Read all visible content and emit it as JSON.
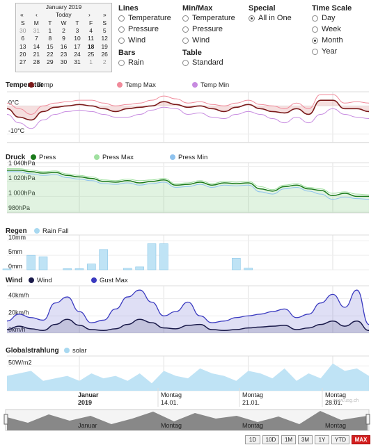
{
  "calendar": {
    "month_label": "January 2019",
    "prev_year": "«",
    "prev_month": "‹",
    "today": "Today",
    "next_month": "›",
    "next_year": "»",
    "weekdays": [
      "S",
      "M",
      "T",
      "W",
      "T",
      "F",
      "S"
    ],
    "weeks": [
      [
        "30",
        "31",
        "1",
        "2",
        "3",
        "4",
        "5"
      ],
      [
        "6",
        "7",
        "8",
        "9",
        "10",
        "11",
        "12"
      ],
      [
        "13",
        "14",
        "15",
        "16",
        "17",
        "18",
        "19"
      ],
      [
        "20",
        "21",
        "22",
        "23",
        "24",
        "25",
        "26"
      ],
      [
        "27",
        "28",
        "29",
        "30",
        "31",
        "1",
        "2"
      ]
    ],
    "selected_day": "18"
  },
  "options": {
    "lines": {
      "title": "Lines",
      "items": [
        "Temperature",
        "Pressure",
        "Wind"
      ]
    },
    "bars": {
      "title": "Bars",
      "items": [
        "Rain"
      ]
    },
    "minmax": {
      "title": "Min/Max",
      "items": [
        "Temperature",
        "Pressure",
        "Wind"
      ]
    },
    "table": {
      "title": "Table",
      "items": [
        "Standard"
      ]
    },
    "special": {
      "title": "Special",
      "items": [
        "All in One"
      ],
      "selected": "All in One"
    },
    "timescale": {
      "title": "Time Scale",
      "items": [
        "Day",
        "Week",
        "Month",
        "Year"
      ],
      "selected": "Month"
    }
  },
  "sections": {
    "temp": {
      "title": "Temperatur",
      "legend": [
        "Temp",
        "Temp Max",
        "Temp Min"
      ],
      "colors": [
        "#7a1a1a",
        "#f08a9a",
        "#c78be0"
      ],
      "yticks": [
        "0°C",
        "-10°C"
      ]
    },
    "press": {
      "title": "Druck",
      "legend": [
        "Press",
        "Press Max",
        "Press Min"
      ],
      "colors": [
        "#1a7a1a",
        "#a0e0a0",
        "#8ec2ee"
      ],
      "yticks": [
        "1 040hPa",
        "1 020hPa",
        "1 000hPa",
        "980hPa"
      ]
    },
    "rain": {
      "title": "Regen",
      "legend": [
        "Rain Fall"
      ],
      "colors": [
        "#a8d8f0"
      ],
      "yticks": [
        "10mm",
        "5mm",
        "0mm"
      ]
    },
    "wind": {
      "title": "Wind",
      "legend": [
        "Wind",
        "Gust Max"
      ],
      "colors": [
        "#1a1a4a",
        "#3a3ac0"
      ],
      "yticks": [
        "40km/h",
        "20km/h",
        "0km/h"
      ]
    },
    "solar": {
      "title": "Globalstrahlung",
      "legend": [
        "solar"
      ],
      "colors": [
        "#a8d8f0"
      ],
      "yticks": [
        "50W/m2",
        "0W/m2"
      ]
    }
  },
  "xaxis": {
    "labels": [
      {
        "line1": "Januar",
        "line2": "2019"
      },
      {
        "line1": "Montag",
        "line2": "14.01."
      },
      {
        "line1": "Montag",
        "line2": "21.01."
      },
      {
        "line1": "Montag",
        "line2": "28.01."
      }
    ]
  },
  "navigator": {
    "labels": [
      "Januar",
      "Montag",
      "Montag",
      "Montag"
    ]
  },
  "watermark": "www.usg.ch",
  "zoom_buttons": [
    "1D",
    "10D",
    "1M",
    "3M",
    "1Y",
    "YTD",
    "MAX"
  ],
  "zoom_selected": "MAX",
  "chart_data": [
    {
      "type": "area",
      "title": "Temperatur",
      "x_unit": "day of January 2019",
      "x": [
        1,
        2,
        3,
        4,
        5,
        6,
        7,
        8,
        9,
        10,
        11,
        12,
        13,
        14,
        15,
        16,
        17,
        18,
        19,
        20,
        21,
        22,
        23,
        24,
        25,
        26,
        27,
        28,
        29,
        30,
        31
      ],
      "series": [
        {
          "name": "Temp",
          "values": [
            -1,
            -4,
            -5,
            -2,
            -0.5,
            0,
            0.5,
            0,
            -1,
            -2,
            -1,
            -0.5,
            0,
            1.5,
            0.5,
            -0.5,
            0,
            -1,
            -2,
            -0.5,
            0.5,
            -1,
            -2,
            -2.5,
            -1,
            -3,
            2,
            2,
            -1,
            -1,
            -2
          ]
        },
        {
          "name": "Temp Max",
          "values": [
            1,
            -1,
            -3,
            0,
            1,
            1.5,
            2,
            2,
            1,
            0,
            0.5,
            1,
            2,
            3.5,
            2.5,
            1,
            1.5,
            0.5,
            0,
            1,
            2,
            0.5,
            0,
            -1,
            1,
            -1,
            4,
            4,
            1,
            1.5,
            1
          ]
        },
        {
          "name": "Temp Min",
          "values": [
            -3,
            -6,
            -8,
            -5,
            -3,
            -2,
            -1.5,
            -2,
            -3,
            -4,
            -4,
            -3,
            -1.5,
            -0.5,
            -1,
            -3,
            -2.5,
            -4,
            -4.5,
            -3,
            -2,
            -3,
            -4.5,
            -6,
            -4,
            -6,
            -3,
            -1,
            -3,
            -4,
            -4.5
          ]
        }
      ],
      "ylim": [
        -13,
        5
      ]
    },
    {
      "type": "area",
      "title": "Druck",
      "x": [
        1,
        2,
        3,
        4,
        5,
        6,
        7,
        8,
        9,
        10,
        11,
        12,
        13,
        14,
        15,
        16,
        17,
        18,
        19,
        20,
        21,
        22,
        23,
        24,
        25,
        26,
        27,
        28,
        29,
        30,
        31
      ],
      "series": [
        {
          "name": "Press",
          "values": [
            1035,
            1035,
            1033,
            1031,
            1032,
            1028,
            1026,
            1024,
            1020,
            1019,
            1021,
            1018,
            1020,
            1022,
            1015,
            1016,
            1019,
            1015,
            1018,
            1017,
            1018,
            1010,
            1007,
            1013,
            1015,
            1010,
            1008,
            1001,
            1004,
            1000,
            1000
          ]
        },
        {
          "name": "Press Max",
          "values": [
            1037,
            1037,
            1035,
            1033,
            1034,
            1030,
            1028,
            1026,
            1022,
            1021,
            1023,
            1021,
            1022,
            1024,
            1017,
            1018,
            1021,
            1017,
            1020,
            1019,
            1020,
            1013,
            1009,
            1015,
            1017,
            1012,
            1010,
            1004,
            1006,
            1003,
            1002
          ]
        },
        {
          "name": "Press Min",
          "values": [
            1033,
            1033,
            1030,
            1028,
            1029,
            1025,
            1023,
            1021,
            1017,
            1016,
            1018,
            1015,
            1017,
            1019,
            1012,
            1013,
            1016,
            1012,
            1015,
            1014,
            1015,
            1006,
            1003,
            1010,
            1012,
            1007,
            1003,
            996,
            999,
            997,
            996
          ]
        }
      ],
      "ylim": [
        978,
        1045
      ]
    },
    {
      "type": "bar",
      "title": "Regen",
      "x": [
        1,
        2,
        3,
        4,
        5,
        6,
        7,
        8,
        9,
        10,
        11,
        12,
        13,
        14,
        15,
        16,
        17,
        18,
        19,
        20,
        21,
        22,
        23,
        24,
        25,
        26,
        27,
        28,
        29,
        30,
        31
      ],
      "series": [
        {
          "name": "Rain Fall",
          "values": [
            0.3,
            0,
            5,
            4.5,
            0,
            0.4,
            0.4,
            2,
            7,
            0,
            0.5,
            1,
            9,
            9,
            0,
            0,
            0,
            0,
            0,
            4,
            0.6,
            0,
            0,
            0,
            0,
            0,
            0,
            0,
            0,
            0,
            0
          ]
        }
      ],
      "ylim": [
        0,
        12
      ]
    },
    {
      "type": "area",
      "title": "Wind",
      "x": [
        1,
        2,
        3,
        4,
        5,
        6,
        7,
        8,
        9,
        10,
        11,
        12,
        13,
        14,
        15,
        16,
        17,
        18,
        19,
        20,
        21,
        22,
        23,
        24,
        25,
        26,
        27,
        28,
        29,
        30,
        31
      ],
      "series": [
        {
          "name": "Wind",
          "values": [
            4,
            8,
            5,
            3,
            10,
            16,
            9,
            4,
            3,
            5,
            10,
            16,
            12,
            6,
            5,
            9,
            10,
            4,
            3,
            4,
            6,
            7,
            8,
            9,
            4,
            6,
            10,
            14,
            8,
            14,
            3
          ]
        },
        {
          "name": "Gust Max",
          "values": [
            14,
            22,
            18,
            15,
            35,
            42,
            25,
            12,
            15,
            28,
            42,
            50,
            36,
            20,
            25,
            36,
            20,
            12,
            14,
            18,
            20,
            22,
            25,
            28,
            18,
            22,
            35,
            45,
            30,
            50,
            10
          ]
        }
      ],
      "ylim": [
        0,
        55
      ]
    },
    {
      "type": "area",
      "title": "Globalstrahlung",
      "x": [
        1,
        2,
        3,
        4,
        5,
        6,
        7,
        8,
        9,
        10,
        11,
        12,
        13,
        14,
        15,
        16,
        17,
        18,
        19,
        20,
        21,
        22,
        23,
        24,
        25,
        26,
        27,
        28,
        29,
        30,
        31
      ],
      "series": [
        {
          "name": "solar",
          "values": [
            30,
            35,
            40,
            20,
            25,
            30,
            20,
            35,
            25,
            30,
            20,
            35,
            15,
            40,
            30,
            25,
            45,
            35,
            30,
            20,
            40,
            35,
            25,
            45,
            20,
            35,
            25,
            55,
            40,
            45,
            30
          ]
        }
      ],
      "ylim": [
        0,
        70
      ]
    }
  ]
}
